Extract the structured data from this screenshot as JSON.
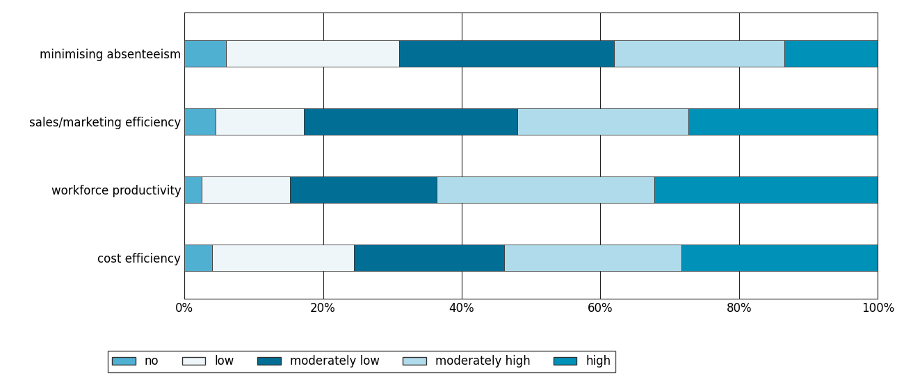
{
  "chart_data": {
    "type": "bar",
    "orientation": "horizontal",
    "stacked": true,
    "categories": [
      "minimising absenteeism",
      "sales/marketing efficiency",
      "workforce productivity",
      "cost efficiency"
    ],
    "series": [
      {
        "name": "no",
        "color": "#4fb0d2",
        "values": [
          6,
          4.5,
          2.5,
          4
        ]
      },
      {
        "name": "low",
        "color": "#eef6f9",
        "values": [
          25,
          12.7,
          12.7,
          20.5
        ]
      },
      {
        "name": "moderately low",
        "color": "#006e95",
        "values": [
          31,
          30.8,
          21.2,
          21.6
        ]
      },
      {
        "name": "moderately high",
        "color": "#b0dbea",
        "values": [
          24.5,
          24.7,
          31.4,
          25.6
        ]
      },
      {
        "name": "high",
        "color": "#0091b9",
        "values": [
          13.5,
          27.3,
          32.2,
          28.3
        ]
      }
    ],
    "xlim": [
      0,
      100
    ],
    "xticks": [
      {
        "value": 0,
        "label": "0%"
      },
      {
        "value": 20,
        "label": "20%"
      },
      {
        "value": 40,
        "label": "40%"
      },
      {
        "value": 60,
        "label": "60%"
      },
      {
        "value": 80,
        "label": "80%"
      },
      {
        "value": 100,
        "label": "100%"
      }
    ],
    "grid": true,
    "legend": "lower center"
  }
}
